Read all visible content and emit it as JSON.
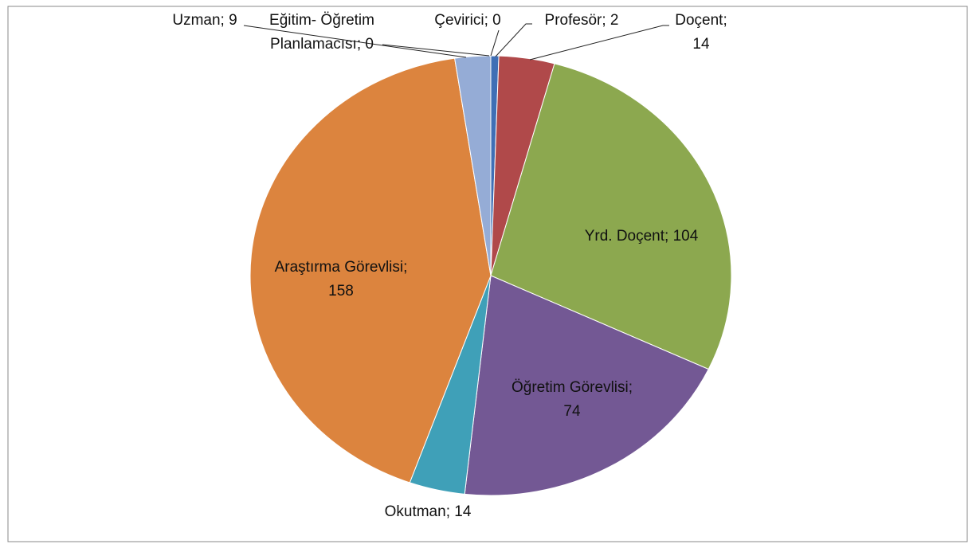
{
  "chart_data": {
    "type": "pie",
    "labels": [
      [
        "Profesör; 2"
      ],
      [
        "Doçent;",
        "14"
      ],
      [
        "Yrd. Doçent; 104"
      ],
      [
        "Öğretim Görevlisi;",
        "74"
      ],
      [
        "Okutman; 14"
      ],
      [
        "Araştırma Görevlisi;",
        "158"
      ],
      [
        "Uzman; 9"
      ],
      [
        "Eğitim- Öğretim",
        "Planlamacısı; 0"
      ],
      [
        "Çevirici; 0"
      ]
    ],
    "values": [
      2,
      14,
      104,
      74,
      14,
      158,
      9,
      0,
      0
    ],
    "colors": [
      "#3f6fb5",
      "#b0494a",
      "#8ca84f",
      "#735894",
      "#3fa0b8",
      "#dc843e",
      "#95acd6",
      "#8aa0c8",
      "#7a8fc0"
    ]
  }
}
